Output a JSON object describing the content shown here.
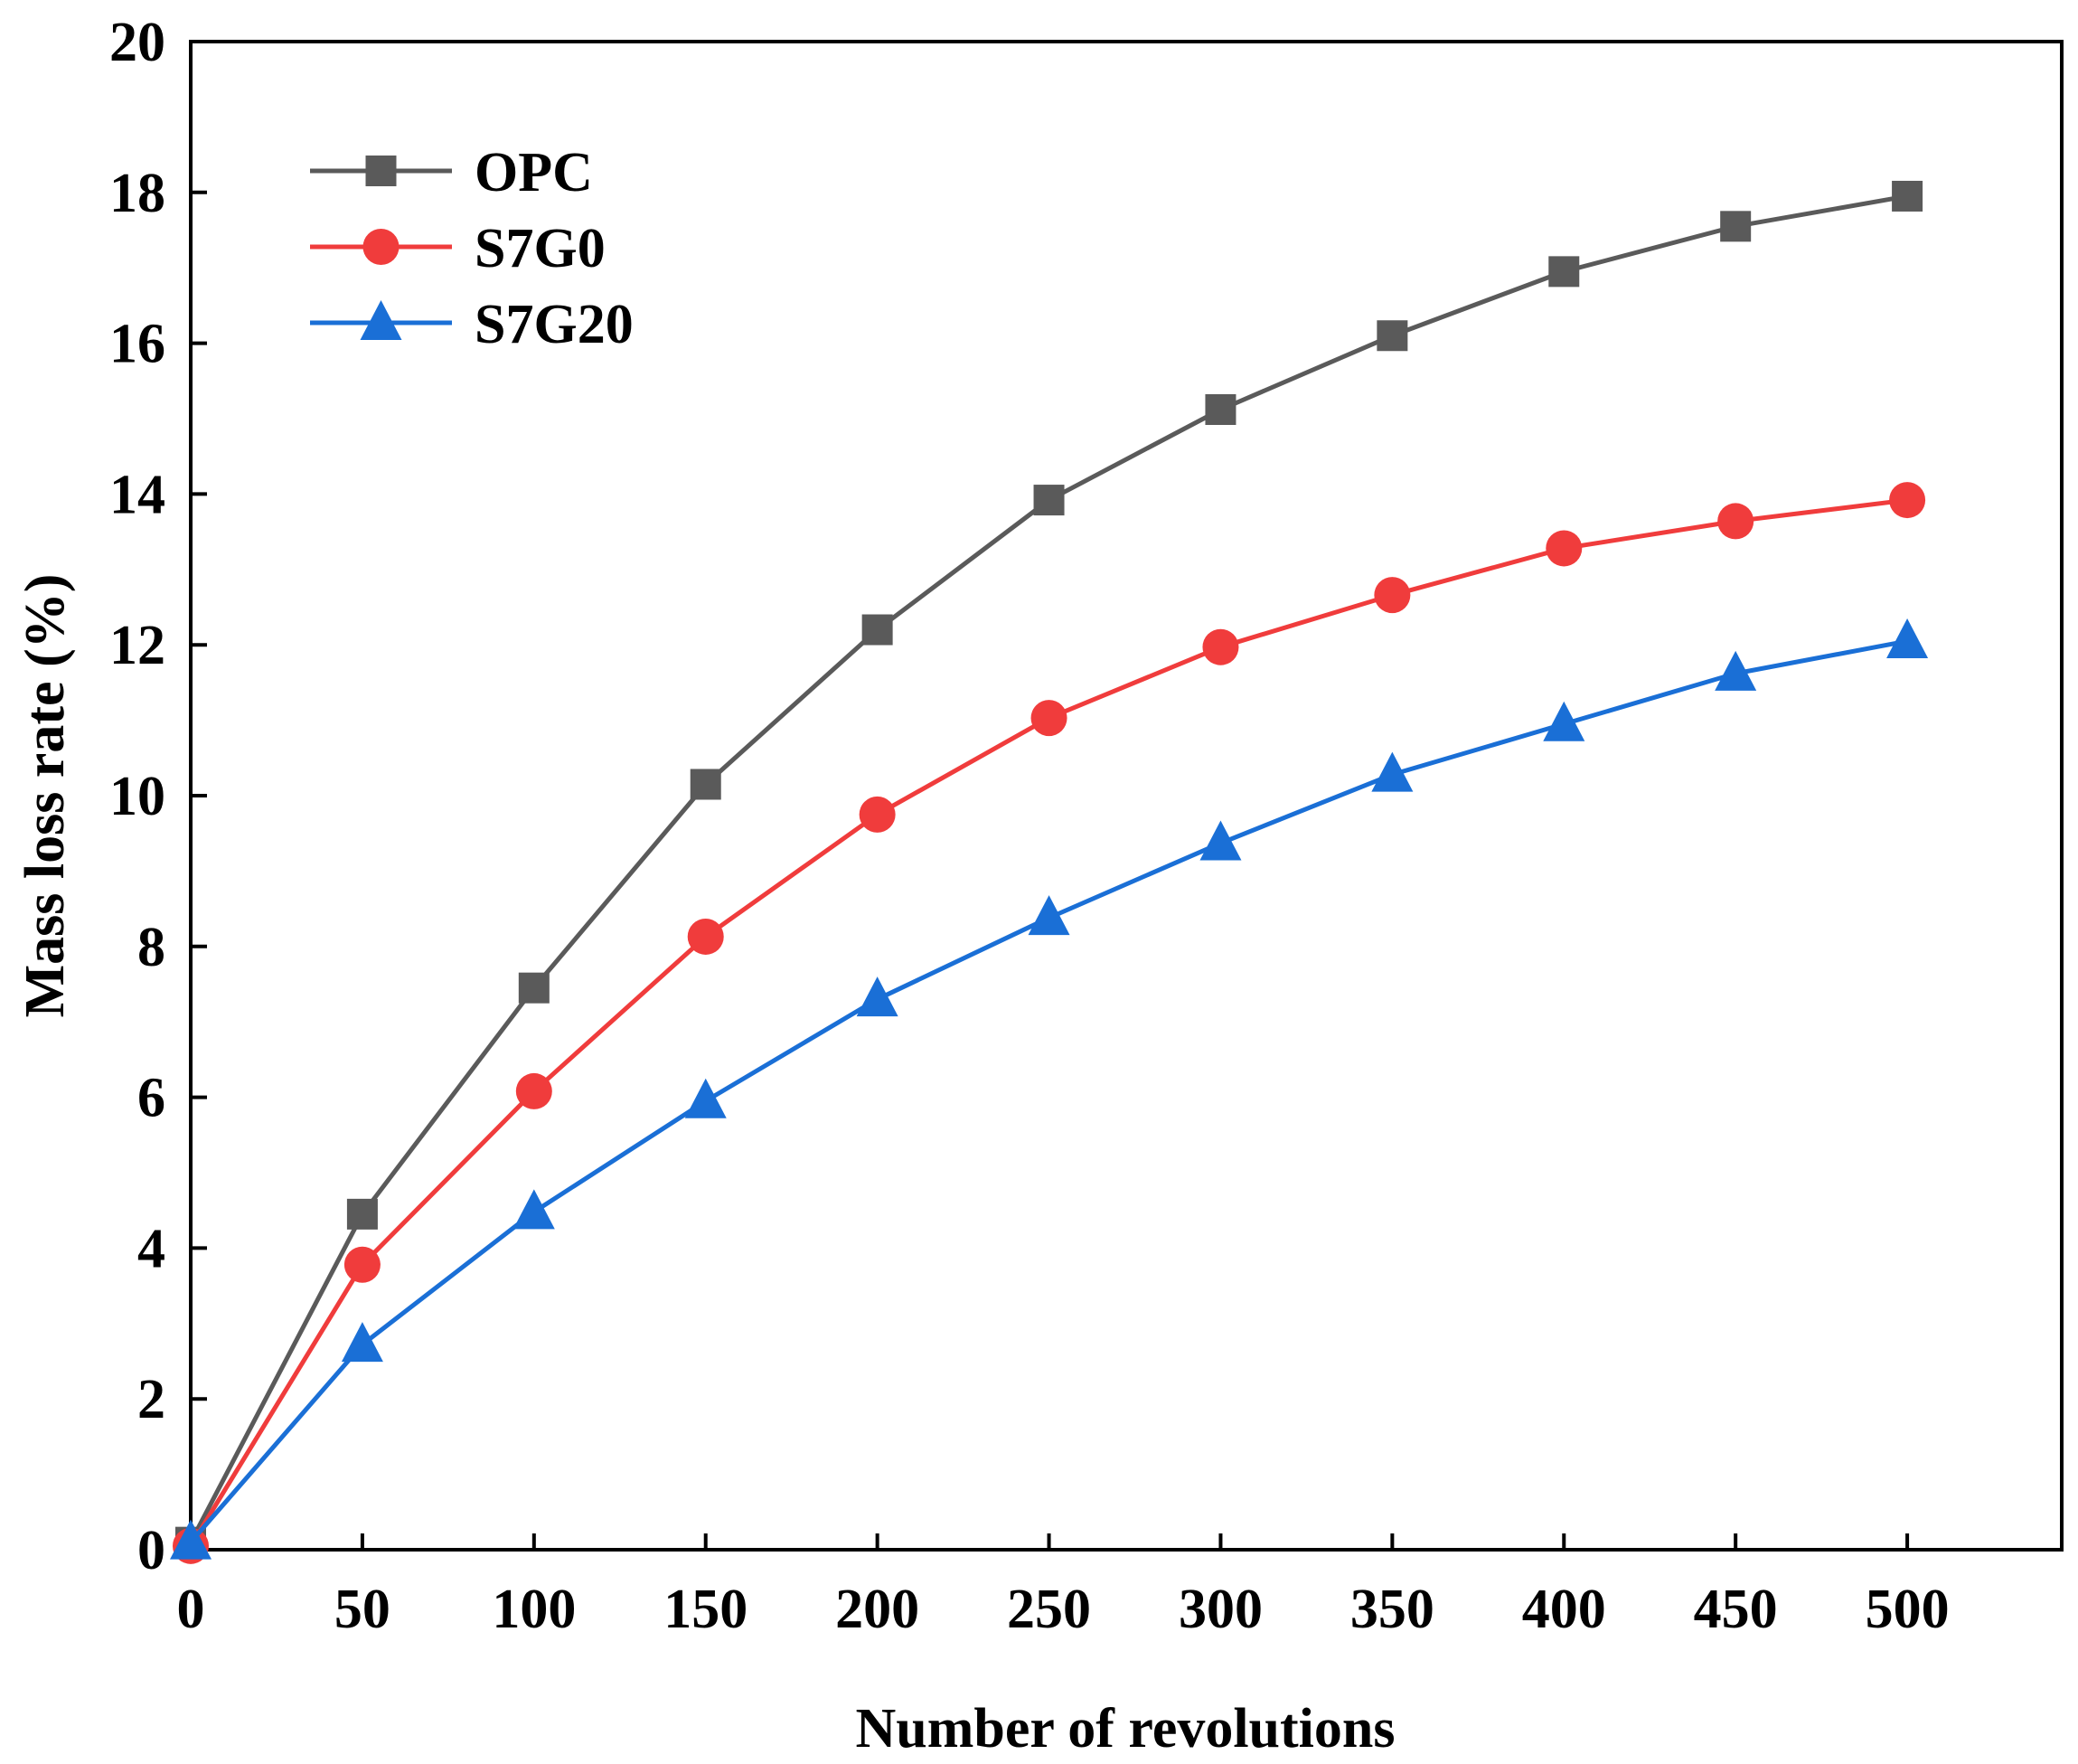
{
  "chart_data": {
    "type": "line",
    "title": "",
    "xlabel": "Number of revolutions",
    "ylabel": "Mass loss rate (%)",
    "xlim": [
      0,
      545
    ],
    "ylim": [
      0,
      20
    ],
    "x": [
      0,
      50,
      100,
      150,
      200,
      250,
      300,
      350,
      400,
      450,
      500
    ],
    "xticks": [
      0,
      50,
      100,
      150,
      200,
      250,
      300,
      350,
      400,
      450,
      500
    ],
    "xtick_labels": [
      "0",
      "50",
      "100",
      "150",
      "200",
      "250",
      "300",
      "350",
      "400",
      "450",
      "500"
    ],
    "yticks": [
      0,
      2,
      4,
      6,
      8,
      10,
      12,
      14,
      16,
      18,
      20
    ],
    "ytick_labels": [
      "0",
      "2",
      "4",
      "6",
      "8",
      "10",
      "12",
      "14",
      "16",
      "18",
      "20"
    ],
    "grid": false,
    "legend_position": "top-left",
    "series": [
      {
        "name": "OPC",
        "color": "#5a5a5a",
        "marker": "square",
        "values": [
          0.1,
          4.45,
          7.45,
          10.15,
          12.2,
          13.92,
          15.12,
          16.1,
          16.95,
          17.55,
          17.95
        ]
      },
      {
        "name": "S7G0",
        "color": "#f03c3c",
        "marker": "circle",
        "values": [
          0.05,
          3.78,
          6.08,
          8.13,
          9.75,
          11.03,
          11.97,
          12.66,
          13.28,
          13.64,
          13.92
        ]
      },
      {
        "name": "S7G20",
        "color": "#1a6fd6",
        "marker": "triangle",
        "values": [
          0.1,
          2.72,
          4.48,
          5.95,
          7.3,
          8.38,
          9.37,
          10.28,
          10.95,
          11.62,
          12.05
        ]
      }
    ]
  }
}
